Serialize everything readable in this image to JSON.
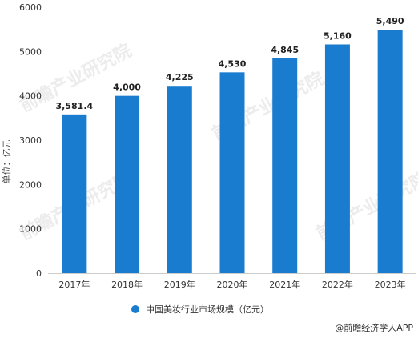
{
  "chart_data": {
    "type": "bar",
    "categories": [
      "2017年",
      "2018年",
      "2019年",
      "2020年",
      "2021年",
      "2022年",
      "2023年"
    ],
    "series": [
      {
        "name": "中国美妆行业市场规模（亿元）",
        "values": [
          3581.4,
          4000,
          4225,
          4530,
          4845,
          5160,
          5490
        ]
      }
    ],
    "data_labels": [
      "3,581.4",
      "4,000",
      "4,225",
      "4,530",
      "4,845",
      "5,160",
      "5,490"
    ],
    "yticks": [
      0,
      1000,
      2000,
      3000,
      4000,
      5000,
      6000
    ],
    "ylim": [
      0,
      6000
    ],
    "ylabel": "单位：亿元",
    "xlabel": "",
    "legend_position": "bottom-center",
    "grid": false,
    "bar_color": "#1a7ccf"
  },
  "watermark": {
    "text": "前瞻产业研究院"
  },
  "credit": {
    "text": "@前瞻经济学人APP"
  }
}
